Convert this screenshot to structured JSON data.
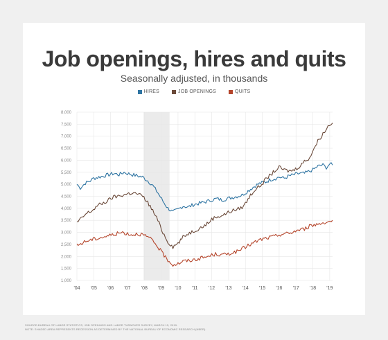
{
  "chart_data": {
    "type": "line",
    "title": "Job openings, hires and quits",
    "subtitle": "Seasonally adjusted, in thousands",
    "xlabel": "",
    "ylabel": "",
    "xlim": [
      2004,
      2019.17
    ],
    "ylim": [
      1000,
      8000
    ],
    "yticks": [
      "8,000",
      "7,500",
      "7,000",
      "6,500",
      "6,000",
      "5,500",
      "5,000",
      "4,500",
      "4,000",
      "3,500",
      "3,000",
      "2,500",
      "2,000",
      "1,500",
      "1,000"
    ],
    "ytick_values": [
      8000,
      7500,
      7000,
      6500,
      6000,
      5500,
      5000,
      4500,
      4000,
      3500,
      3000,
      2500,
      2000,
      1500,
      1000
    ],
    "xticks": [
      "'04",
      "'05",
      "'06",
      "'07",
      "'08",
      "'09",
      "'10",
      "'11",
      "'12",
      "'13",
      "'14",
      "'15",
      "'16",
      "'17",
      "'18",
      "'19"
    ],
    "xtick_values": [
      2004,
      2005,
      2006,
      2007,
      2008,
      2009,
      2010,
      2011,
      2012,
      2013,
      2014,
      2015,
      2016,
      2017,
      2018,
      2019
    ],
    "grid": true,
    "legend_placement": "top-center",
    "recession_band": [
      2007.96,
      2009.5
    ],
    "series": [
      {
        "name": "HIRES",
        "color": "#2f75a3",
        "points": [
          [
            2004.0,
            5000
          ],
          [
            2004.2,
            4850
          ],
          [
            2004.5,
            5050
          ],
          [
            2004.8,
            5150
          ],
          [
            2005.0,
            5250
          ],
          [
            2005.3,
            5300
          ],
          [
            2005.6,
            5350
          ],
          [
            2005.9,
            5400
          ],
          [
            2006.2,
            5450
          ],
          [
            2006.5,
            5400
          ],
          [
            2006.8,
            5500
          ],
          [
            2007.0,
            5450
          ],
          [
            2007.3,
            5400
          ],
          [
            2007.6,
            5350
          ],
          [
            2007.9,
            5300
          ],
          [
            2008.2,
            5150
          ],
          [
            2008.5,
            4950
          ],
          [
            2008.8,
            4650
          ],
          [
            2009.1,
            4300
          ],
          [
            2009.4,
            4000
          ],
          [
            2009.7,
            3850
          ],
          [
            2010.0,
            3950
          ],
          [
            2010.3,
            4100
          ],
          [
            2010.6,
            4050
          ],
          [
            2010.9,
            4150
          ],
          [
            2011.2,
            4200
          ],
          [
            2011.5,
            4250
          ],
          [
            2011.8,
            4300
          ],
          [
            2012.0,
            4350
          ],
          [
            2012.3,
            4400
          ],
          [
            2012.6,
            4350
          ],
          [
            2012.9,
            4400
          ],
          [
            2013.2,
            4450
          ],
          [
            2013.5,
            4500
          ],
          [
            2013.8,
            4550
          ],
          [
            2014.0,
            4650
          ],
          [
            2014.3,
            4800
          ],
          [
            2014.6,
            4950
          ],
          [
            2014.9,
            5050
          ],
          [
            2015.2,
            5100
          ],
          [
            2015.5,
            5200
          ],
          [
            2015.8,
            5250
          ],
          [
            2016.0,
            5300
          ],
          [
            2016.3,
            5250
          ],
          [
            2016.6,
            5350
          ],
          [
            2016.9,
            5400
          ],
          [
            2017.2,
            5450
          ],
          [
            2017.5,
            5450
          ],
          [
            2017.8,
            5550
          ],
          [
            2018.0,
            5600
          ],
          [
            2018.3,
            5750
          ],
          [
            2018.6,
            5800
          ],
          [
            2018.8,
            5700
          ],
          [
            2019.0,
            5850
          ],
          [
            2019.17,
            5800
          ]
        ]
      },
      {
        "name": "JOB OPENINGS",
        "color": "#6b4a3a",
        "points": [
          [
            2004.0,
            3400
          ],
          [
            2004.3,
            3600
          ],
          [
            2004.6,
            3800
          ],
          [
            2004.9,
            3900
          ],
          [
            2005.2,
            4100
          ],
          [
            2005.5,
            4200
          ],
          [
            2005.8,
            4300
          ],
          [
            2006.1,
            4450
          ],
          [
            2006.4,
            4500
          ],
          [
            2006.7,
            4550
          ],
          [
            2007.0,
            4600
          ],
          [
            2007.3,
            4650
          ],
          [
            2007.6,
            4600
          ],
          [
            2007.9,
            4500
          ],
          [
            2008.2,
            4250
          ],
          [
            2008.5,
            3900
          ],
          [
            2008.8,
            3500
          ],
          [
            2009.1,
            3000
          ],
          [
            2009.4,
            2600
          ],
          [
            2009.7,
            2400
          ],
          [
            2010.0,
            2550
          ],
          [
            2010.3,
            2800
          ],
          [
            2010.6,
            2950
          ],
          [
            2010.9,
            3050
          ],
          [
            2011.2,
            3150
          ],
          [
            2011.5,
            3250
          ],
          [
            2011.8,
            3400
          ],
          [
            2012.0,
            3550
          ],
          [
            2012.3,
            3650
          ],
          [
            2012.6,
            3700
          ],
          [
            2012.9,
            3800
          ],
          [
            2013.2,
            3900
          ],
          [
            2013.5,
            3950
          ],
          [
            2013.8,
            4050
          ],
          [
            2014.0,
            4200
          ],
          [
            2014.3,
            4550
          ],
          [
            2014.6,
            4800
          ],
          [
            2014.9,
            4950
          ],
          [
            2015.2,
            5200
          ],
          [
            2015.5,
            5400
          ],
          [
            2015.8,
            5600
          ],
          [
            2016.0,
            5700
          ],
          [
            2016.3,
            5600
          ],
          [
            2016.6,
            5550
          ],
          [
            2016.9,
            5600
          ],
          [
            2017.2,
            5750
          ],
          [
            2017.5,
            5950
          ],
          [
            2017.8,
            6100
          ],
          [
            2018.0,
            6400
          ],
          [
            2018.3,
            6800
          ],
          [
            2018.6,
            7100
          ],
          [
            2018.8,
            7300
          ],
          [
            2019.0,
            7500
          ],
          [
            2019.17,
            7550
          ]
        ]
      },
      {
        "name": "QUITS",
        "color": "#b5452b",
        "points": [
          [
            2004.0,
            2450
          ],
          [
            2004.3,
            2550
          ],
          [
            2004.6,
            2650
          ],
          [
            2004.9,
            2700
          ],
          [
            2005.2,
            2750
          ],
          [
            2005.5,
            2800
          ],
          [
            2005.8,
            2850
          ],
          [
            2006.1,
            2900
          ],
          [
            2006.4,
            2950
          ],
          [
            2006.7,
            3000
          ],
          [
            2007.0,
            2950
          ],
          [
            2007.3,
            2900
          ],
          [
            2007.6,
            2950
          ],
          [
            2007.9,
            2900
          ],
          [
            2008.2,
            2800
          ],
          [
            2008.5,
            2650
          ],
          [
            2008.8,
            2400
          ],
          [
            2009.1,
            2100
          ],
          [
            2009.4,
            1850
          ],
          [
            2009.7,
            1650
          ],
          [
            2010.0,
            1700
          ],
          [
            2010.3,
            1800
          ],
          [
            2010.6,
            1820
          ],
          [
            2010.9,
            1850
          ],
          [
            2011.2,
            1900
          ],
          [
            2011.5,
            1950
          ],
          [
            2011.8,
            2000
          ],
          [
            2012.0,
            2050
          ],
          [
            2012.3,
            2100
          ],
          [
            2012.6,
            2050
          ],
          [
            2012.9,
            2100
          ],
          [
            2013.2,
            2150
          ],
          [
            2013.5,
            2200
          ],
          [
            2013.8,
            2300
          ],
          [
            2014.0,
            2400
          ],
          [
            2014.3,
            2500
          ],
          [
            2014.6,
            2600
          ],
          [
            2014.9,
            2700
          ],
          [
            2015.2,
            2750
          ],
          [
            2015.5,
            2800
          ],
          [
            2015.8,
            2850
          ],
          [
            2016.0,
            2900
          ],
          [
            2016.3,
            2950
          ],
          [
            2016.6,
            2950
          ],
          [
            2016.9,
            3050
          ],
          [
            2017.2,
            3100
          ],
          [
            2017.5,
            3150
          ],
          [
            2017.8,
            3250
          ],
          [
            2018.0,
            3300
          ],
          [
            2018.3,
            3350
          ],
          [
            2018.6,
            3400
          ],
          [
            2018.8,
            3450
          ],
          [
            2019.0,
            3450
          ],
          [
            2019.17,
            3500
          ]
        ]
      }
    ]
  },
  "source_note": {
    "line1": "SOURCE:BUREAU OF LABOR STATISTICS, JOB OPENINGS AND LABOR TURNOVER SURVEY, MARCH 15, 2019.",
    "line2": "NOTE: SHADED AREA REPRESENTS RECESSION AS DETERMINED BY THE NATIONAL BUREAU OF ECONOMIC RESEARCH (NBER)."
  }
}
